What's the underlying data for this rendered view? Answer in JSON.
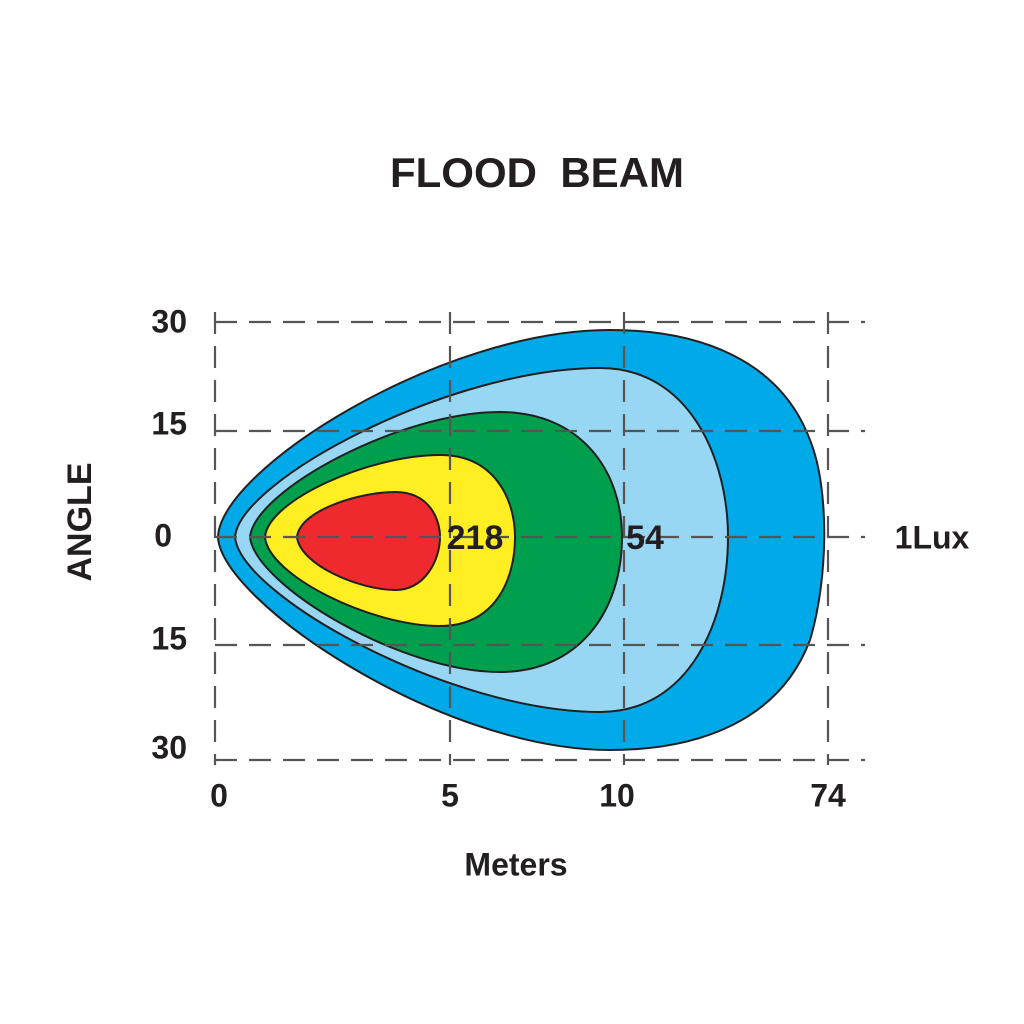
{
  "title": "FLOOD  BEAM",
  "y_axis": {
    "label": "ANGLE",
    "ticks": [
      "30",
      "15",
      "0",
      "15",
      "30"
    ]
  },
  "x_axis": {
    "label": "Meters",
    "ticks": [
      "0",
      "5",
      "10",
      "74"
    ]
  },
  "annotations": [
    "218",
    "54",
    "1Lux"
  ]
}
